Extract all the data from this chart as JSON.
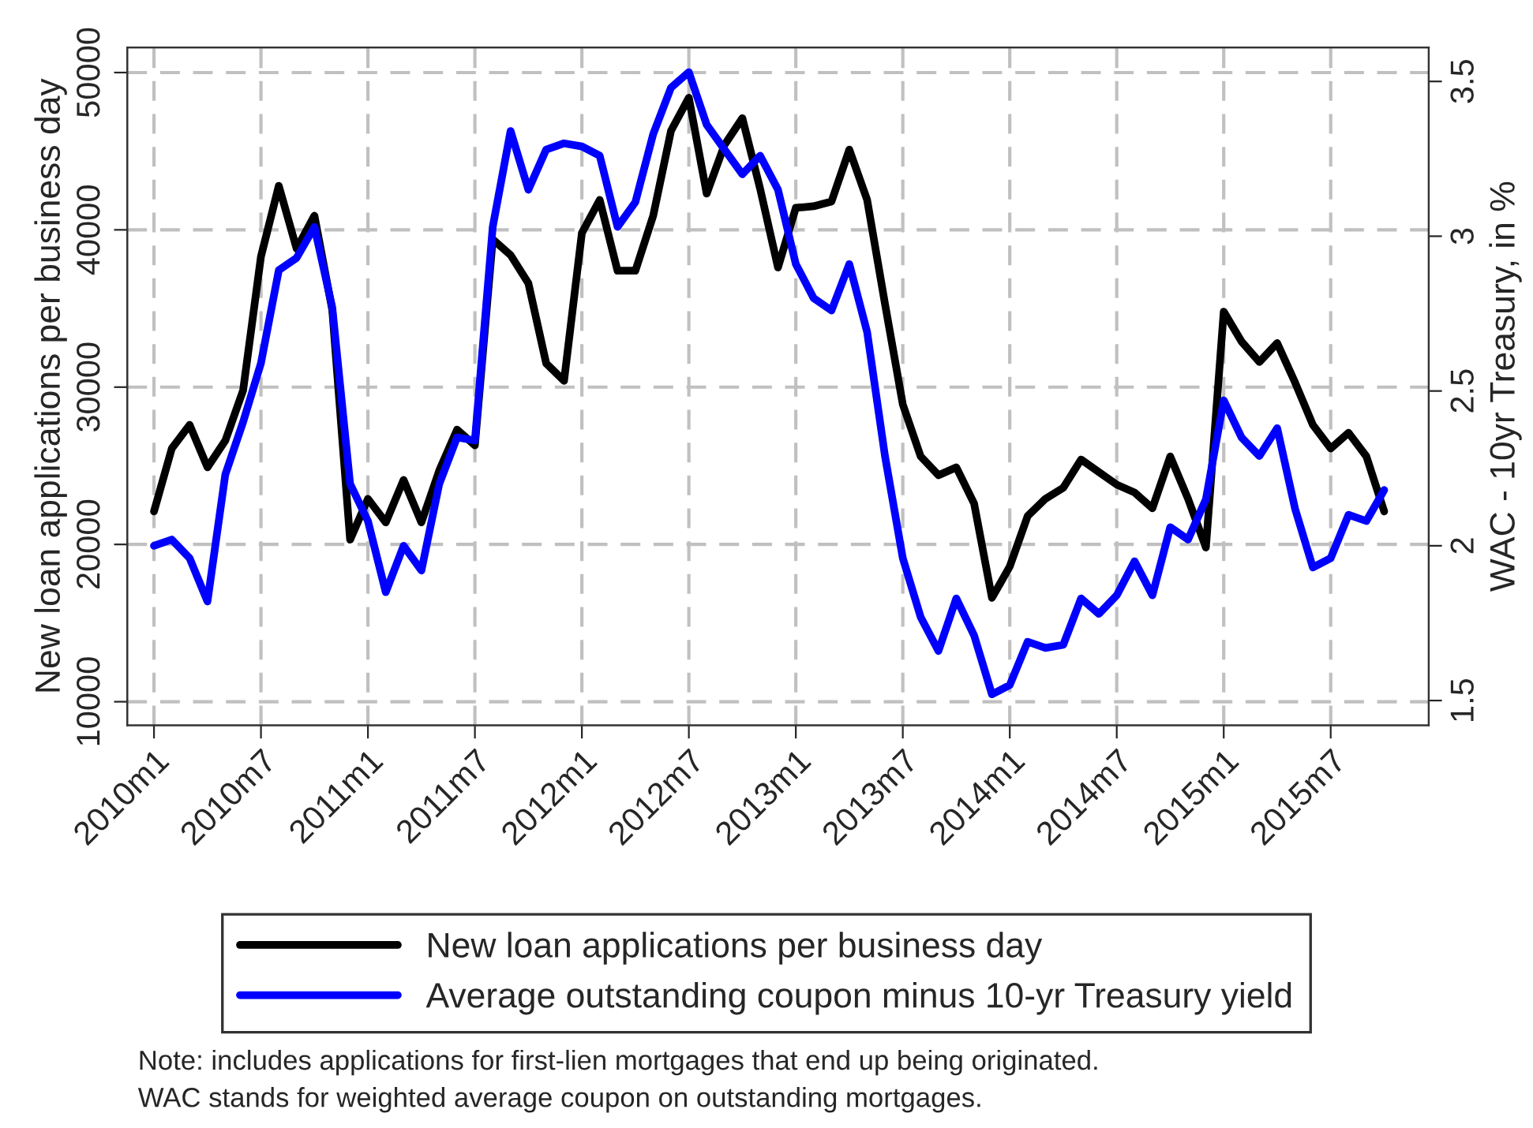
{
  "chart_data": {
    "type": "line",
    "categories": [
      "2010m1",
      null,
      null,
      null,
      null,
      null,
      "2010m7",
      null,
      null,
      null,
      null,
      null,
      "2011m1",
      null,
      null,
      null,
      null,
      null,
      "2011m7",
      null,
      null,
      null,
      null,
      null,
      "2012m1",
      null,
      null,
      null,
      null,
      null,
      "2012m7",
      null,
      null,
      null,
      null,
      null,
      "2013m1",
      null,
      null,
      null,
      null,
      null,
      "2013m7",
      null,
      null,
      null,
      null,
      null,
      "2014m1",
      null,
      null,
      null,
      null,
      null,
      "2014m7",
      null,
      null,
      null,
      null,
      null,
      "2015m1",
      null,
      null,
      null,
      null,
      null,
      "2015m7",
      null,
      null,
      null
    ],
    "series": [
      {
        "name": "New loan applications per business day",
        "color": "#000000",
        "values": [
          22100,
          26100,
          27600,
          24900,
          26600,
          29800,
          38300,
          42800,
          38800,
          40900,
          34900,
          20300,
          22900,
          21400,
          24100,
          21400,
          24700,
          27300,
          26300,
          39400,
          38400,
          36600,
          31500,
          30400,
          39800,
          41900,
          37400,
          37400,
          40900,
          46300,
          48400,
          42300,
          45400,
          47100,
          42600,
          37600,
          41400,
          41500,
          41800,
          45100,
          41900,
          35300,
          28900,
          25600,
          24400,
          24900,
          22600,
          16600,
          18600,
          21800,
          22900,
          23600,
          25400,
          24600,
          23800,
          23300,
          22300,
          25600,
          22900,
          19800,
          34800,
          32900,
          31600,
          32800,
          30300,
          27600,
          26100,
          27100,
          25600,
          22100
        ]
      },
      {
        "name": "Average outstanding coupon minus 10-yr Treasury yield",
        "color": "#0000ff",
        "axis": "y2",
        "values": [
          2.0,
          2.02,
          1.96,
          1.82,
          2.23,
          2.4,
          2.59,
          2.89,
          2.93,
          3.03,
          2.77,
          2.2,
          2.08,
          1.85,
          2.0,
          1.92,
          2.2,
          2.35,
          2.34,
          3.03,
          3.34,
          3.15,
          3.28,
          3.3,
          3.29,
          3.26,
          3.03,
          3.11,
          3.33,
          3.48,
          3.53,
          3.36,
          3.28,
          3.2,
          3.26,
          3.15,
          2.91,
          2.8,
          2.76,
          2.91,
          2.69,
          2.29,
          1.96,
          1.77,
          1.66,
          1.83,
          1.71,
          1.52,
          1.55,
          1.69,
          1.67,
          1.68,
          1.83,
          1.78,
          1.84,
          1.95,
          1.84,
          2.06,
          2.02,
          2.15,
          2.47,
          2.35,
          2.29,
          2.38,
          2.12,
          1.93,
          1.96,
          2.1,
          2.08,
          2.18
        ]
      }
    ],
    "ylabel": "New loan applications per business day",
    "y2label": "WAC - 10yr Treasury, in %",
    "ylim": [
      8500,
      51600
    ],
    "yticks": [
      10000,
      20000,
      30000,
      40000,
      50000
    ],
    "y2lim": [
      1.42,
      3.61
    ],
    "y2ticks": [
      1.5,
      2,
      2.5,
      3,
      3.5
    ],
    "grid": true,
    "legend": "bottom",
    "line_style": "solid",
    "marker": "none",
    "annotations": [
      "Note: includes applications for first-lien mortgages that end up being originated.",
      "WAC stands for weighted average coupon on outstanding mortgages."
    ]
  }
}
